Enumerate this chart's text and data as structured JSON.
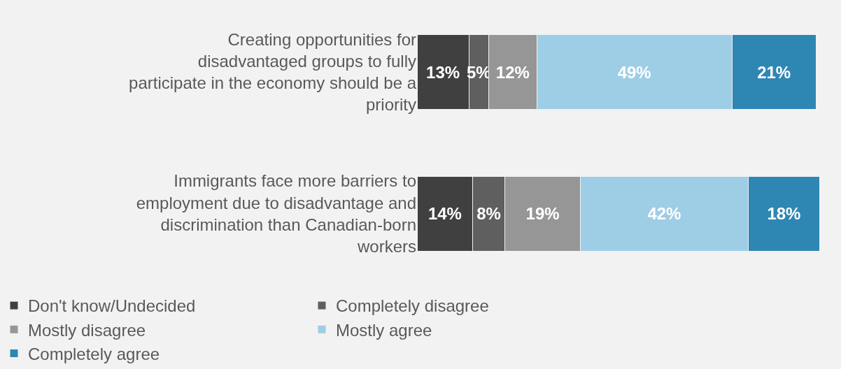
{
  "chart_data": {
    "type": "bar",
    "orientation": "horizontal",
    "stacked": true,
    "legend": "bottom",
    "categories": [
      "Creating opportunities for disadvantaged groups to fully participate in the economy should be a priority",
      "Immigrants face more barriers to employment due to disadvantage and discrimination than Canadian-born workers"
    ],
    "series": [
      {
        "name": "Don't know/Undecided",
        "color": "#404040",
        "values": [
          13,
          14
        ],
        "value_labels": [
          "13%",
          "14%"
        ]
      },
      {
        "name": "Completely disagree",
        "color": "#5f5f5f",
        "values": [
          5,
          8
        ],
        "value_labels": [
          "5%",
          "8%"
        ]
      },
      {
        "name": "Mostly disagree",
        "color": "#969696",
        "values": [
          12,
          19
        ],
        "value_labels": [
          "12%",
          "19%"
        ]
      },
      {
        "name": "Mostly agree",
        "color": "#9ecde6",
        "values": [
          49,
          42
        ],
        "value_labels": [
          "49%",
          "42%"
        ]
      },
      {
        "name": "Completely agree",
        "color": "#2e86b3",
        "values": [
          21,
          18
        ],
        "value_labels": [
          "21%",
          "18%"
        ]
      }
    ]
  }
}
